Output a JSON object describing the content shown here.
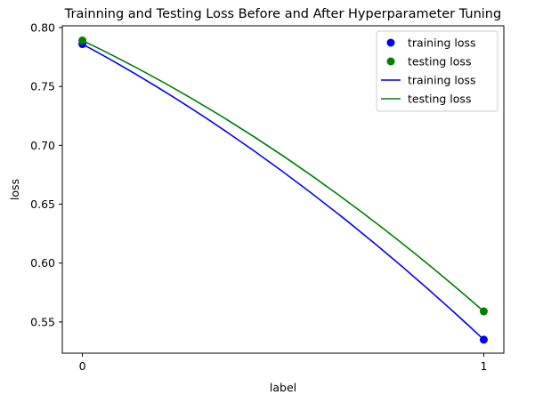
{
  "chart_data": {
    "type": "line",
    "title": "Trainning and Testing Loss Before and After Hyperparameter Tuning",
    "xlabel": "label",
    "ylabel": "loss",
    "x_ticks": [
      0,
      1
    ],
    "x_tick_labels": [
      "0",
      "1"
    ],
    "y_ticks": [
      0.55,
      0.6,
      0.65,
      0.7,
      0.75,
      0.8
    ],
    "y_tick_labels": [
      "0.55",
      "0.60",
      "0.65",
      "0.70",
      "0.75",
      "0.80"
    ],
    "xlim": [
      -0.05,
      1.05
    ],
    "ylim": [
      0.5235,
      0.8015
    ],
    "grid": false,
    "legend_position": "top-right",
    "series": [
      {
        "name": "training loss",
        "kind": "scatter",
        "color": "#0000ff",
        "x": [
          0,
          1
        ],
        "y": [
          0.786,
          0.535
        ]
      },
      {
        "name": "testing loss",
        "kind": "scatter",
        "color": "#008000",
        "x": [
          0,
          1
        ],
        "y": [
          0.789,
          0.559
        ]
      },
      {
        "name": "training loss",
        "kind": "line",
        "color": "#0000ff",
        "x": [
          0,
          1
        ],
        "y": [
          0.786,
          0.535
        ]
      },
      {
        "name": "testing loss",
        "kind": "line",
        "color": "#008000",
        "x": [
          0,
          1
        ],
        "y": [
          0.789,
          0.559
        ]
      }
    ]
  }
}
